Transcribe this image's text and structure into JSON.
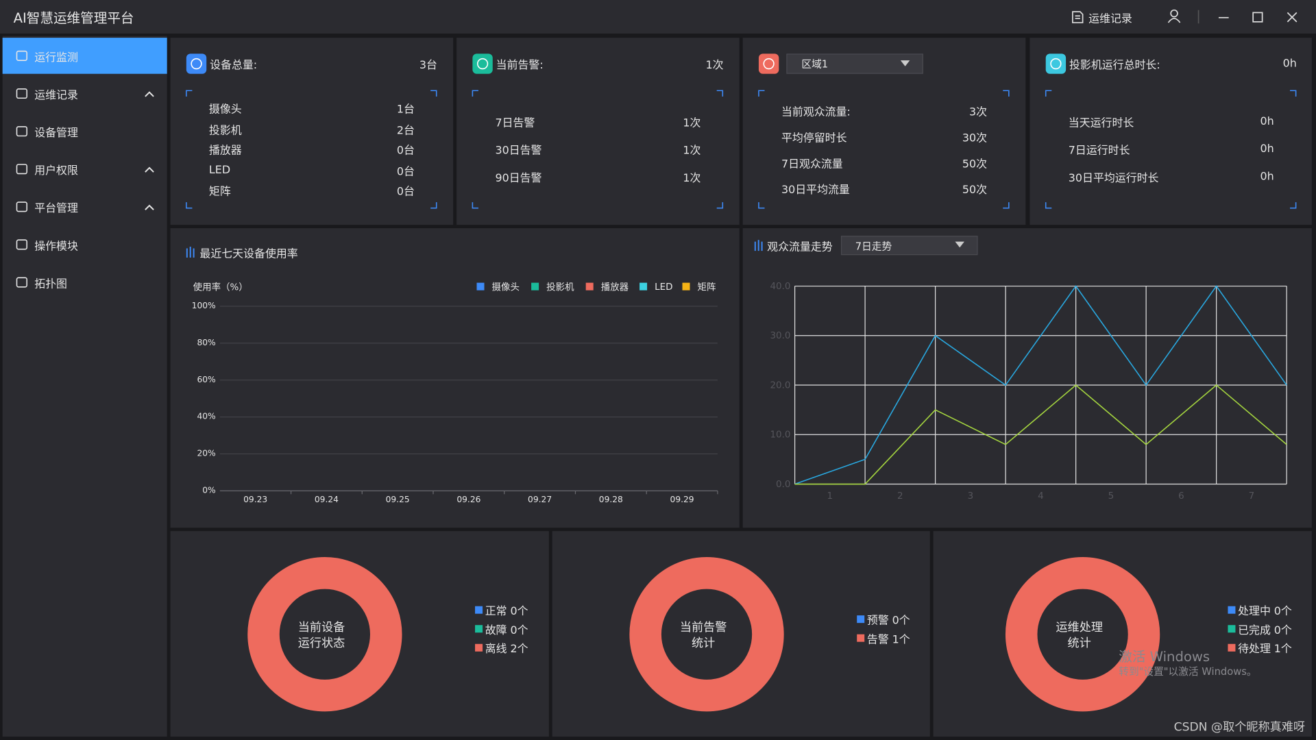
{
  "header": {
    "title": "AI智慧运维管理平台",
    "action": "运维记录"
  },
  "sidebar": {
    "active": 0,
    "items": [
      {
        "label": "运行监测",
        "expandable": false
      },
      {
        "label": "运维记录",
        "expandable": true
      },
      {
        "label": "设备管理",
        "expandable": false
      },
      {
        "label": "用户权限",
        "expandable": true
      },
      {
        "label": "平台管理",
        "expandable": true
      },
      {
        "label": "操作模块",
        "expandable": false
      },
      {
        "label": "拓扑图",
        "expandable": false
      }
    ]
  },
  "cards": [
    {
      "icon_color": "#3d8af7",
      "title": "设备总量:",
      "total": "3台",
      "rows": [
        {
          "label": "摄像头",
          "value": "1台"
        },
        {
          "label": "投影机",
          "value": "2台"
        },
        {
          "label": "播放器",
          "value": "0台"
        },
        {
          "label": "LED",
          "value": "0台"
        },
        {
          "label": "矩阵",
          "value": "0台"
        }
      ]
    },
    {
      "icon_color": "#1bbc9b",
      "title": "当前告警:",
      "total": "1次",
      "rows": [
        {
          "label": "7日告警",
          "value": "1次"
        },
        {
          "label": "30日告警",
          "value": "1次"
        },
        {
          "label": "90日告警",
          "value": "1次"
        }
      ]
    },
    {
      "icon_color": "#ee6b5e",
      "dropdown": "区域1",
      "rows": [
        {
          "label": "当前观众流量:",
          "value": "3次"
        },
        {
          "label": "平均停留时长",
          "value": "30次"
        },
        {
          "label": "7日观众流量",
          "value": "50次"
        },
        {
          "label": "30日平均流量",
          "value": "50次"
        }
      ]
    },
    {
      "icon_color": "#3cc8e0",
      "title": "投影机运行总时长:",
      "total": "0h",
      "rows": [
        {
          "label": "当天运行时长",
          "value": "0h"
        },
        {
          "label": "7日运行时长",
          "value": "0h"
        },
        {
          "label": "30日平均运行时长",
          "value": "0h"
        }
      ]
    }
  ],
  "chart_data": [
    {
      "type": "bar",
      "title": "最近七天设备使用率",
      "y_label": "使用率（%）",
      "categories": [
        "09.23",
        "09.24",
        "09.25",
        "09.26",
        "09.27",
        "09.28",
        "09.29"
      ],
      "series": [
        {
          "name": "摄像头",
          "color": "#3d8af7",
          "values": [
            null,
            null,
            null,
            null,
            null,
            null,
            null
          ]
        },
        {
          "name": "投影机",
          "color": "#1bbc9b",
          "values": [
            null,
            null,
            null,
            null,
            null,
            null,
            null
          ]
        },
        {
          "name": "播放器",
          "color": "#ee6b5e",
          "values": [
            null,
            null,
            null,
            null,
            null,
            null,
            null
          ]
        },
        {
          "name": "LED",
          "color": "#3cd0e0",
          "values": [
            null,
            null,
            null,
            null,
            null,
            null,
            null
          ]
        },
        {
          "name": "矩阵",
          "color": "#f5b316",
          "values": [
            null,
            null,
            null,
            null,
            null,
            null,
            null
          ]
        }
      ],
      "ylim": [
        0,
        100
      ],
      "yticks": [
        {
          "value": 0,
          "label": "0%"
        },
        {
          "value": 20,
          "label": "20%"
        },
        {
          "value": 40,
          "label": "40%"
        },
        {
          "value": 60,
          "label": "60%"
        },
        {
          "value": 80,
          "label": "80%"
        },
        {
          "value": 100,
          "label": "100%"
        }
      ],
      "grid": true
    },
    {
      "type": "line",
      "title": "观众流量走势",
      "dropdown": "7日走势",
      "categories": [
        null,
        "1",
        "2",
        "3",
        "4",
        "5",
        "6",
        "7"
      ],
      "series": [
        {
          "color": "#29a8e0",
          "values": [
            0,
            5,
            30,
            20,
            40,
            20,
            40,
            20
          ]
        },
        {
          "color": "#a5d63f",
          "values": [
            0,
            0,
            15,
            8,
            20,
            8,
            20,
            8
          ]
        }
      ],
      "ylim": [
        0,
        40
      ],
      "yticks": [
        {
          "value": 0,
          "label": "0.0"
        },
        {
          "value": 10,
          "label": "10.0"
        },
        {
          "value": 20,
          "label": "20.0"
        },
        {
          "value": 30,
          "label": "30.0"
        },
        {
          "value": 40,
          "label": "40.0"
        }
      ],
      "grid": true
    },
    {
      "type": "pie",
      "center_text": [
        "当前设备",
        "运行状态"
      ],
      "unit_note": null,
      "categories": [
        "正常",
        "故障",
        "离线"
      ],
      "values": [
        0,
        0,
        2
      ],
      "value_labels": [
        "0个",
        "0个",
        "2个"
      ],
      "colors": [
        "#3d8af7",
        "#1bbc9b",
        "#ee6b5e"
      ]
    },
    {
      "type": "pie",
      "center_text": [
        "当前告警",
        "统计"
      ],
      "categories": [
        "预警",
        "告警"
      ],
      "values": [
        0,
        1
      ],
      "value_labels": [
        "0个",
        "1个"
      ],
      "colors": [
        "#3d8af7",
        "#ee6b5e"
      ]
    },
    {
      "type": "pie",
      "center_text": [
        "运维处理",
        "统计"
      ],
      "categories": [
        "处理中",
        "已完成",
        "待处理"
      ],
      "values": [
        0,
        0,
        1
      ],
      "value_labels": [
        "0个",
        "0个",
        "1个"
      ],
      "colors": [
        "#3d8af7",
        "#1bbc9b",
        "#ee6b5e"
      ]
    }
  ],
  "overlay": {
    "activation_title": "激活 Windows",
    "activation_hint": "转到\"设置\"以激活 Windows。",
    "credit": "CSDN @取个昵称真难呀"
  }
}
